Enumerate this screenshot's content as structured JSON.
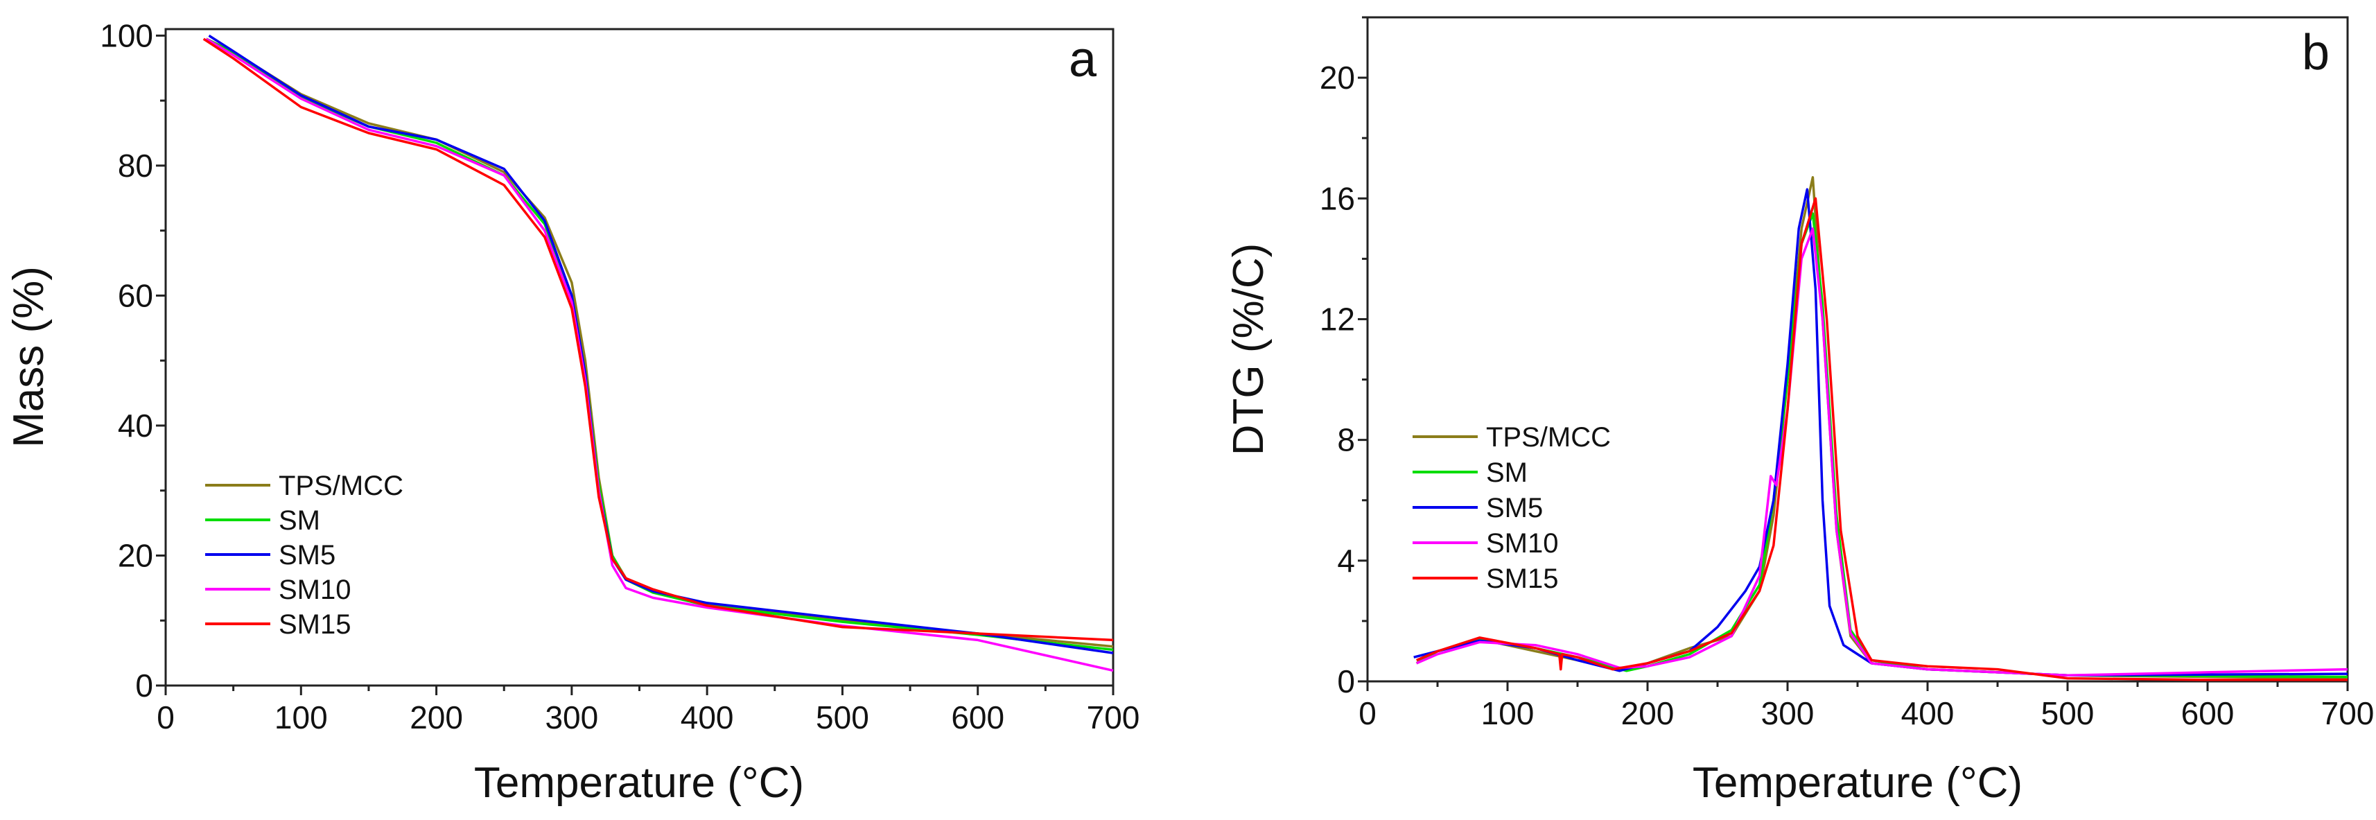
{
  "chart_data": [
    {
      "type": "line",
      "panel_label": "a",
      "xlabel": "Temperature (°C)",
      "ylabel": "Mass (%)",
      "xlim": [
        0,
        700
      ],
      "ylim": [
        0,
        101
      ],
      "xticks": [
        0,
        100,
        200,
        300,
        400,
        500,
        600,
        700
      ],
      "yticks": [
        0,
        20,
        40,
        60,
        80,
        100
      ],
      "grid": false,
      "legend": "bottom-left",
      "series": [
        {
          "name": "TPS/MCC",
          "color": "#8B7D1A",
          "x": [
            30,
            50,
            100,
            150,
            200,
            250,
            280,
            300,
            310,
            320,
            330,
            340,
            360,
            400,
            500,
            600,
            700
          ],
          "y": [
            99.5,
            97.5,
            91,
            86.5,
            84,
            79,
            72,
            62,
            50,
            32,
            20,
            16.5,
            14.5,
            12.5,
            10,
            8,
            6
          ]
        },
        {
          "name": "SM",
          "color": "#00DD00",
          "x": [
            30,
            50,
            100,
            150,
            200,
            250,
            280,
            300,
            310,
            320,
            330,
            340,
            360,
            400,
            500,
            600,
            700
          ],
          "y": [
            99.5,
            97.3,
            90.5,
            86,
            83.5,
            78.5,
            71,
            60,
            48,
            31,
            20,
            16.3,
            14.3,
            12.3,
            9.8,
            7.8,
            5.5
          ]
        },
        {
          "name": "SM5",
          "color": "#0000EE",
          "x": [
            32,
            50,
            100,
            150,
            200,
            250,
            280,
            300,
            310,
            320,
            330,
            340,
            360,
            400,
            500,
            600,
            700
          ],
          "y": [
            100,
            97.6,
            90.8,
            86,
            84,
            79.5,
            71.5,
            60,
            48,
            30,
            19.5,
            16.3,
            14.5,
            12.7,
            10.3,
            8,
            5
          ]
        },
        {
          "name": "SM10",
          "color": "#FF00FF",
          "x": [
            30,
            50,
            100,
            150,
            200,
            250,
            280,
            300,
            310,
            320,
            330,
            340,
            360,
            400,
            500,
            600,
            700
          ],
          "y": [
            99.5,
            97,
            90.3,
            85.5,
            83,
            78.5,
            70,
            59,
            47,
            30,
            18.5,
            15,
            13.5,
            12,
            9.2,
            7,
            2.3
          ]
        },
        {
          "name": "SM15",
          "color": "#FF0000",
          "x": [
            28,
            50,
            100,
            150,
            200,
            250,
            280,
            300,
            310,
            320,
            330,
            340,
            360,
            400,
            500,
            600,
            700
          ],
          "y": [
            99.5,
            96.5,
            89,
            85,
            82.5,
            77,
            69,
            58,
            46,
            29,
            19.5,
            16.5,
            14.8,
            12.3,
            9,
            8,
            7
          ]
        }
      ]
    },
    {
      "type": "line",
      "panel_label": "b",
      "xlabel": "Temperature (°C)",
      "ylabel": "DTG (%/C)",
      "xlim": [
        0,
        700
      ],
      "ylim": [
        0,
        22
      ],
      "xticks": [
        0,
        100,
        200,
        300,
        400,
        500,
        600,
        700
      ],
      "yticks": [
        0,
        4,
        8,
        12,
        16,
        20
      ],
      "grid": false,
      "legend": "middle-left",
      "series": [
        {
          "name": "TPS/MCC",
          "color": "#8B7D1A",
          "x": [
            35,
            50,
            80,
            120,
            150,
            180,
            200,
            230,
            260,
            280,
            290,
            300,
            310,
            318,
            325,
            335,
            345,
            360,
            400,
            500,
            700
          ],
          "y": [
            0.6,
            1.0,
            1.4,
            1.0,
            0.7,
            0.4,
            0.6,
            1.1,
            1.5,
            3,
            5.5,
            10,
            15,
            16.7,
            12,
            5,
            1.5,
            0.6,
            0.4,
            0.2,
            0.1
          ]
        },
        {
          "name": "SM",
          "color": "#00DD00",
          "x": [
            35,
            50,
            80,
            120,
            150,
            185,
            200,
            230,
            260,
            280,
            290,
            300,
            310,
            318,
            325,
            335,
            345,
            360,
            400,
            500,
            700
          ],
          "y": [
            0.6,
            1.0,
            1.4,
            1.1,
            0.8,
            0.35,
            0.5,
            0.9,
            1.7,
            3.2,
            6,
            10,
            14.5,
            15.5,
            12.5,
            5.5,
            1.7,
            0.7,
            0.4,
            0.2,
            0.15
          ]
        },
        {
          "name": "SM5",
          "color": "#0000EE",
          "x": [
            33,
            50,
            80,
            120,
            150,
            180,
            200,
            230,
            250,
            270,
            280,
            290,
            300,
            308,
            314,
            320,
            325,
            330,
            340,
            360,
            400,
            500,
            700
          ],
          "y": [
            0.8,
            1.0,
            1.35,
            1.1,
            0.7,
            0.35,
            0.6,
            1.0,
            1.8,
            3.0,
            3.8,
            6,
            10.5,
            15,
            16.3,
            13,
            6,
            2.5,
            1.2,
            0.6,
            0.4,
            0.2,
            0.25
          ]
        },
        {
          "name": "SM10",
          "color": "#FF00FF",
          "x": [
            35,
            50,
            80,
            120,
            150,
            180,
            200,
            230,
            260,
            280,
            288,
            292,
            300,
            310,
            318,
            325,
            335,
            345,
            360,
            400,
            500,
            600,
            700
          ],
          "y": [
            0.6,
            0.9,
            1.3,
            1.2,
            0.9,
            0.45,
            0.5,
            0.8,
            1.5,
            3.5,
            6.8,
            6.5,
            9,
            14,
            15,
            12,
            5,
            1.6,
            0.6,
            0.4,
            0.2,
            0.3,
            0.4
          ]
        },
        {
          "name": "SM15",
          "color": "#FF0000",
          "x": [
            35,
            50,
            80,
            120,
            137,
            138,
            139,
            150,
            175,
            200,
            230,
            260,
            280,
            290,
            300,
            310,
            320,
            328,
            338,
            350,
            360,
            400,
            450,
            500,
            600,
            700
          ],
          "y": [
            0.7,
            1.0,
            1.45,
            1.1,
            0.9,
            0.4,
            0.9,
            0.8,
            0.4,
            0.6,
            1.0,
            1.6,
            3.0,
            4.5,
            9,
            14.5,
            16.0,
            12,
            5,
            1.5,
            0.7,
            0.5,
            0.4,
            0.1,
            0.05,
            0.05
          ]
        }
      ]
    }
  ]
}
